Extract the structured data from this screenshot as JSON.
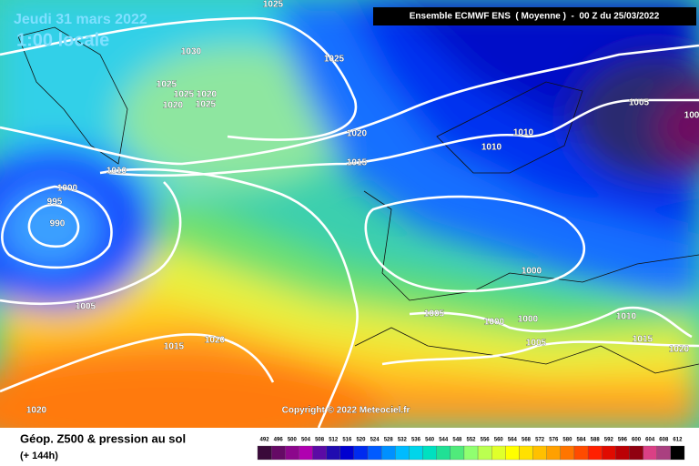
{
  "header": {
    "date": "Jeudi 31 mars 2022",
    "time": "1:00 locale",
    "model": "Ensemble ECMWF ENS  ( Moyenne )  -  00 Z du 25/03/2022"
  },
  "map": {
    "isobar_labels": [
      1025,
      1030,
      1025,
      1025,
      1025,
      1020,
      1020,
      1025,
      1020,
      1010,
      1010,
      1005,
      100,
      1015,
      1010,
      1000,
      995,
      990,
      1000,
      1005,
      1005,
      1000,
      1000,
      1010,
      1015,
      1005,
      1015,
      1020,
      1020,
      1020
    ]
  },
  "copyright": "Copyright © 2022 Meteociel.fr",
  "footer": {
    "title": "Géop. Z500 & pression au sol",
    "lead": "(+ 144h)",
    "scale": [
      492,
      496,
      500,
      504,
      508,
      512,
      516,
      520,
      524,
      528,
      532,
      536,
      540,
      544,
      548,
      552,
      556,
      560,
      564,
      568,
      572,
      576,
      580,
      584,
      588,
      592,
      596,
      600,
      604,
      608,
      612
    ]
  }
}
